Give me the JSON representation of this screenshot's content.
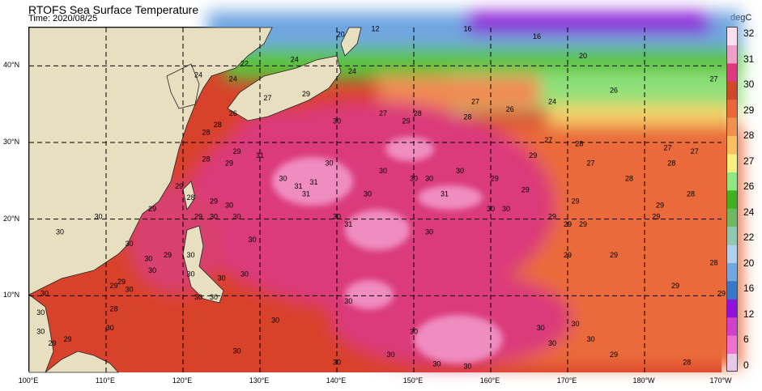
{
  "header": {
    "title": "RTOFS Sea Surface Temperature",
    "time": "Time: 2020/08/25"
  },
  "colorbar": {
    "unit": "degC",
    "ticks": [
      "0",
      "6",
      "12",
      "16",
      "20",
      "22",
      "24",
      "26",
      "27",
      "28",
      "29",
      "30",
      "31",
      "32"
    ],
    "colors": [
      "#e8c8e8",
      "#f070d0",
      "#d040c8",
      "#9010e0",
      "#3878c8",
      "#70a8e0",
      "#b0d0f0",
      "#90c8b0",
      "#70b860",
      "#40b020",
      "#90e880",
      "#f8f080",
      "#f8c060",
      "#f09050",
      "#e86838",
      "#d04828",
      "#e03880",
      "#f0a0c8",
      "#f8e0f0"
    ]
  },
  "map": {
    "lon_labels": [
      "100°E",
      "110°E",
      "120°E",
      "130°E",
      "140°E",
      "150°E",
      "160°E",
      "170°E",
      "180°W",
      "170°W"
    ],
    "lat_labels": [
      "40°N",
      "30°N",
      "20°N",
      "10°N"
    ],
    "extent": {
      "lon_min": 100,
      "lon_max": 190,
      "lat_min": 0,
      "lat_max": 45
    },
    "contour_labels": [
      {
        "lon": 140.5,
        "lat": 43.8,
        "text": "20"
      },
      {
        "lon": 122,
        "lat": 38.5,
        "text": "24"
      },
      {
        "lon": 126.5,
        "lat": 38,
        "text": "24"
      },
      {
        "lon": 126.5,
        "lat": 33.5,
        "text": "26"
      },
      {
        "lon": 131,
        "lat": 35.5,
        "text": "27"
      },
      {
        "lon": 128,
        "lat": 40,
        "text": "22"
      },
      {
        "lon": 134.5,
        "lat": 40.5,
        "text": "24"
      },
      {
        "lon": 142,
        "lat": 39,
        "text": "24"
      },
      {
        "lon": 123,
        "lat": 31,
        "text": "28"
      },
      {
        "lon": 124.5,
        "lat": 32,
        "text": "28"
      },
      {
        "lon": 127,
        "lat": 28.5,
        "text": "29"
      },
      {
        "lon": 130,
        "lat": 28,
        "text": "31"
      },
      {
        "lon": 146,
        "lat": 33.5,
        "text": "27"
      },
      {
        "lon": 150.5,
        "lat": 33.5,
        "text": "28"
      },
      {
        "lon": 158,
        "lat": 35,
        "text": "27"
      },
      {
        "lon": 162.5,
        "lat": 34,
        "text": "26"
      },
      {
        "lon": 168,
        "lat": 35,
        "text": "24"
      },
      {
        "lon": 167.5,
        "lat": 30,
        "text": "27"
      },
      {
        "lon": 173,
        "lat": 27,
        "text": "27"
      },
      {
        "lon": 183,
        "lat": 29,
        "text": "27"
      },
      {
        "lon": 186.5,
        "lat": 28.5,
        "text": "27"
      },
      {
        "lon": 189,
        "lat": 38,
        "text": "27"
      },
      {
        "lon": 176,
        "lat": 36.5,
        "text": "26"
      },
      {
        "lon": 172,
        "lat": 41,
        "text": "20"
      },
      {
        "lon": 166,
        "lat": 43.5,
        "text": "16"
      },
      {
        "lon": 157,
        "lat": 44.5,
        "text": "16"
      },
      {
        "lon": 145,
        "lat": 44.5,
        "text": "12"
      },
      {
        "lon": 157,
        "lat": 33,
        "text": "28"
      },
      {
        "lon": 165.5,
        "lat": 28,
        "text": "29"
      },
      {
        "lon": 171.5,
        "lat": 29.5,
        "text": "28"
      },
      {
        "lon": 178,
        "lat": 25,
        "text": "28"
      },
      {
        "lon": 183.5,
        "lat": 27,
        "text": "28"
      },
      {
        "lon": 186,
        "lat": 23,
        "text": "28"
      },
      {
        "lon": 160.5,
        "lat": 25,
        "text": "29"
      },
      {
        "lon": 164.5,
        "lat": 23.5,
        "text": "29"
      },
      {
        "lon": 171,
        "lat": 22,
        "text": "29"
      },
      {
        "lon": 182,
        "lat": 21.5,
        "text": "29"
      },
      {
        "lon": 181.5,
        "lat": 20,
        "text": "29"
      },
      {
        "lon": 168,
        "lat": 20,
        "text": "29"
      },
      {
        "lon": 170,
        "lat": 19,
        "text": "29"
      },
      {
        "lon": 172,
        "lat": 19,
        "text": "29"
      },
      {
        "lon": 162,
        "lat": 21,
        "text": "30"
      },
      {
        "lon": 160,
        "lat": 21,
        "text": "30"
      },
      {
        "lon": 156,
        "lat": 26,
        "text": "30"
      },
      {
        "lon": 150,
        "lat": 25,
        "text": "30"
      },
      {
        "lon": 152,
        "lat": 25,
        "text": "30"
      },
      {
        "lon": 154,
        "lat": 23,
        "text": "31"
      },
      {
        "lon": 144,
        "lat": 23,
        "text": "30"
      },
      {
        "lon": 146,
        "lat": 26,
        "text": "30"
      },
      {
        "lon": 140,
        "lat": 20,
        "text": "30"
      },
      {
        "lon": 141.5,
        "lat": 19,
        "text": "31"
      },
      {
        "lon": 136,
        "lat": 23,
        "text": "31"
      },
      {
        "lon": 135,
        "lat": 24,
        "text": "31"
      },
      {
        "lon": 139,
        "lat": 27,
        "text": "30"
      },
      {
        "lon": 136,
        "lat": 36,
        "text": "29"
      },
      {
        "lon": 140,
        "lat": 32.5,
        "text": "30"
      },
      {
        "lon": 149,
        "lat": 32.5,
        "text": "29"
      },
      {
        "lon": 152,
        "lat": 18,
        "text": "30"
      },
      {
        "lon": 137,
        "lat": 24.5,
        "text": "31"
      },
      {
        "lon": 126,
        "lat": 27,
        "text": "29"
      },
      {
        "lon": 123,
        "lat": 27.5,
        "text": "28"
      },
      {
        "lon": 124,
        "lat": 22,
        "text": "29"
      },
      {
        "lon": 119.5,
        "lat": 24,
        "text": "29"
      },
      {
        "lon": 121,
        "lat": 22.5,
        "text": "28"
      },
      {
        "lon": 116,
        "lat": 21,
        "text": "29"
      },
      {
        "lon": 109,
        "lat": 20,
        "text": "30"
      },
      {
        "lon": 104,
        "lat": 18,
        "text": "30"
      },
      {
        "lon": 113,
        "lat": 16.5,
        "text": "30"
      },
      {
        "lon": 116,
        "lat": 13,
        "text": "30"
      },
      {
        "lon": 118,
        "lat": 15,
        "text": "29"
      },
      {
        "lon": 121,
        "lat": 15,
        "text": "30"
      },
      {
        "lon": 126,
        "lat": 21.5,
        "text": "30"
      },
      {
        "lon": 127,
        "lat": 20,
        "text": "30"
      },
      {
        "lon": 124,
        "lat": 20,
        "text": "30"
      },
      {
        "lon": 129,
        "lat": 17,
        "text": "30"
      },
      {
        "lon": 122,
        "lat": 20,
        "text": "29"
      },
      {
        "lon": 115.5,
        "lat": 14.5,
        "text": "30"
      },
      {
        "lon": 111,
        "lat": 11,
        "text": "29"
      },
      {
        "lon": 112,
        "lat": 11.5,
        "text": "29"
      },
      {
        "lon": 121,
        "lat": 12.5,
        "text": "30"
      },
      {
        "lon": 128,
        "lat": 12.5,
        "text": "30"
      },
      {
        "lon": 122,
        "lat": 9.5,
        "text": "30"
      },
      {
        "lon": 124,
        "lat": 9.5,
        "text": "30"
      },
      {
        "lon": 111,
        "lat": 8,
        "text": "28"
      },
      {
        "lon": 102,
        "lat": 10,
        "text": "30"
      },
      {
        "lon": 101.5,
        "lat": 7.5,
        "text": "30"
      },
      {
        "lon": 101.5,
        "lat": 5,
        "text": "30"
      },
      {
        "lon": 103,
        "lat": 3.5,
        "text": "29"
      },
      {
        "lon": 105,
        "lat": 4,
        "text": "29"
      },
      {
        "lon": 110.5,
        "lat": 5.5,
        "text": "30"
      },
      {
        "lon": 127,
        "lat": 2.5,
        "text": "30"
      },
      {
        "lon": 132,
        "lat": 6.5,
        "text": "30"
      },
      {
        "lon": 141.5,
        "lat": 9,
        "text": "30"
      },
      {
        "lon": 150,
        "lat": 5,
        "text": "30"
      },
      {
        "lon": 147,
        "lat": 2,
        "text": "30"
      },
      {
        "lon": 153,
        "lat": 0.8,
        "text": "30"
      },
      {
        "lon": 157,
        "lat": 0.5,
        "text": "30"
      },
      {
        "lon": 140,
        "lat": 1,
        "text": "30"
      },
      {
        "lon": 168,
        "lat": 3.5,
        "text": "30"
      },
      {
        "lon": 173,
        "lat": 4,
        "text": "30"
      },
      {
        "lon": 166.5,
        "lat": 5.5,
        "text": "30"
      },
      {
        "lon": 171,
        "lat": 6,
        "text": "30"
      },
      {
        "lon": 176,
        "lat": 2,
        "text": "29"
      },
      {
        "lon": 170,
        "lat": 15,
        "text": "29"
      },
      {
        "lon": 176,
        "lat": 15,
        "text": "29"
      },
      {
        "lon": 184,
        "lat": 11,
        "text": "29"
      },
      {
        "lon": 189,
        "lat": 14,
        "text": "28"
      },
      {
        "lon": 190,
        "lat": 10,
        "text": "29"
      },
      {
        "lon": 185.5,
        "lat": 1,
        "text": "28"
      },
      {
        "lon": 113,
        "lat": 10.5,
        "text": "30"
      },
      {
        "lon": 125,
        "lat": 12,
        "text": "30"
      },
      {
        "lon": 133,
        "lat": 25,
        "text": "30"
      }
    ]
  }
}
